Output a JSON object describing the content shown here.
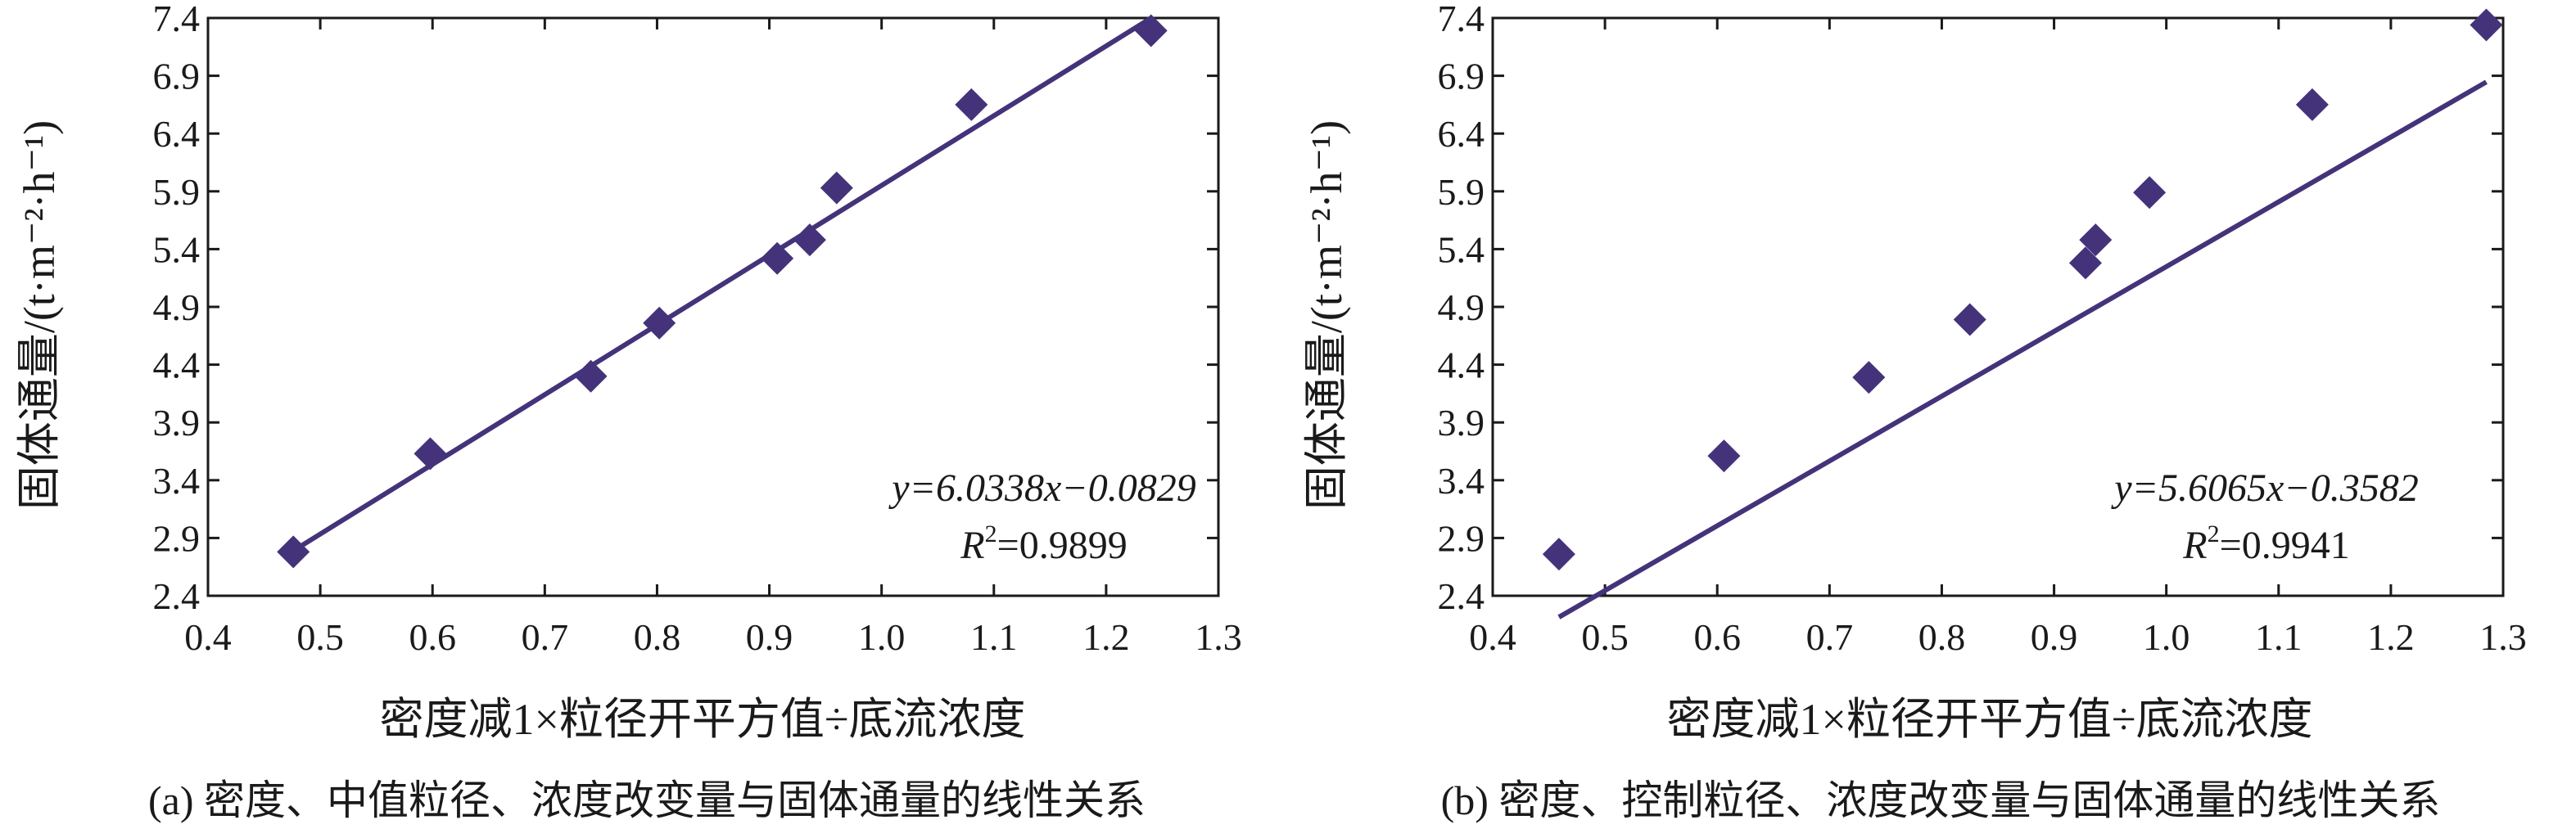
{
  "colors": {
    "series": "#44337a",
    "axis": "#1a1a1a",
    "background": "#ffffff"
  },
  "chart_data": [
    {
      "type": "scatter",
      "title": "",
      "caption": "(a) 密度、中值粒径、浓度改变量与固体通量的线性关系",
      "xlabel": "密度减1×粒径开平方值÷底流浓度",
      "ylabel": "固体通量/(t·m⁻²·h⁻¹)",
      "xlim": [
        0.4,
        1.3
      ],
      "ylim": [
        2.4,
        7.4
      ],
      "xticks": [
        "0.4",
        "0.5",
        "0.6",
        "0.7",
        "0.8",
        "0.9",
        "1.0",
        "1.1",
        "1.2",
        "1.3"
      ],
      "yticks": [
        "2.4",
        "2.9",
        "3.4",
        "3.9",
        "4.4",
        "4.9",
        "5.4",
        "5.9",
        "6.4",
        "6.9",
        "7.4"
      ],
      "grid": false,
      "marker": "diamond",
      "points": [
        {
          "x": 0.476,
          "y": 2.78
        },
        {
          "x": 0.598,
          "y": 3.63
        },
        {
          "x": 0.741,
          "y": 4.3
        },
        {
          "x": 0.802,
          "y": 4.76
        },
        {
          "x": 0.907,
          "y": 5.32
        },
        {
          "x": 0.936,
          "y": 5.48
        },
        {
          "x": 0.96,
          "y": 5.93
        },
        {
          "x": 1.08,
          "y": 6.65
        },
        {
          "x": 1.24,
          "y": 7.29
        }
      ],
      "fit": {
        "slope": 6.0338,
        "intercept": -0.0829,
        "x_range": [
          0.476,
          1.24
        ]
      },
      "equation": "y=6.0338x−0.0829",
      "r2_value": "=0.9899"
    },
    {
      "type": "scatter",
      "title": "",
      "caption": "(b) 密度、控制粒径、浓度改变量与固体通量的线性关系",
      "xlabel": "密度减1×粒径开平方值÷底流浓度",
      "ylabel": "固体通量/(t·m⁻²·h⁻¹)",
      "xlim": [
        0.4,
        1.3
      ],
      "ylim": [
        2.4,
        7.4
      ],
      "xticks": [
        "0.4",
        "0.5",
        "0.6",
        "0.7",
        "0.8",
        "0.9",
        "1.0",
        "1.1",
        "1.2",
        "1.3"
      ],
      "yticks": [
        "2.4",
        "2.9",
        "3.4",
        "3.9",
        "4.4",
        "4.9",
        "5.4",
        "5.9",
        "6.4",
        "6.9",
        "7.4"
      ],
      "grid": false,
      "marker": "diamond",
      "points": [
        {
          "x": 0.459,
          "y": 2.76
        },
        {
          "x": 0.606,
          "y": 3.61
        },
        {
          "x": 0.735,
          "y": 4.29
        },
        {
          "x": 0.825,
          "y": 4.79
        },
        {
          "x": 0.928,
          "y": 5.28
        },
        {
          "x": 0.937,
          "y": 5.48
        },
        {
          "x": 0.985,
          "y": 5.89
        },
        {
          "x": 1.13,
          "y": 6.65
        },
        {
          "x": 1.285,
          "y": 7.34
        }
      ],
      "fit": {
        "slope": 5.6065,
        "intercept": -0.3582,
        "x_range": [
          0.459,
          1.285
        ]
      },
      "equation": "y=5.6065x−0.3582",
      "r2_value": "=0.9941"
    }
  ]
}
